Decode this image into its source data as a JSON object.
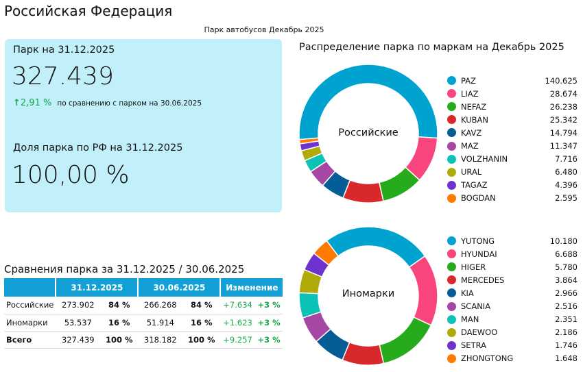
{
  "title": "Российская Федерация",
  "subtitle": "Парк автобусов Декабрь 2025",
  "kpi": {
    "park_label": "Парк на 31.12.2025",
    "park_value": "327.439",
    "change_arrow": "arrow-up-icon",
    "change_pct": "2,91 %",
    "change_text": "по сравнению с парком на 30.06.2025",
    "share_label": "Доля парка по РФ на 31.12.2025",
    "share_value": "100,00 %"
  },
  "comparison": {
    "title": "Сравнения парка за 31.12.2025 / 30.06.2025",
    "headers": [
      "",
      "31.12.2025",
      "30.06.2025",
      "Изменение"
    ],
    "rows": [
      {
        "name": "Российские",
        "v1": "273.902",
        "p1": "84 %",
        "v2": "266.268",
        "p2": "84 %",
        "d": "+7.634",
        "dp": "+3 %"
      },
      {
        "name": "Иномарки",
        "v1": "53.537",
        "p1": "16 %",
        "v2": "51.914",
        "p2": "16 %",
        "d": "+1.623",
        "dp": "+3 %"
      },
      {
        "name": "Всего",
        "v1": "327.439",
        "p1": "100 %",
        "v2": "318.182",
        "p2": "100 %",
        "d": "+9.257",
        "dp": "+3 %"
      }
    ]
  },
  "chart_data": [
    {
      "type": "pie",
      "title": "Распределение парка по маркам на Декабрь 2025",
      "center_label": "Российские",
      "legend_position": "right",
      "categories": [
        "PAZ",
        "LIAZ",
        "NEFAZ",
        "KUBAN",
        "KAVZ",
        "MAZ",
        "VOLZHANIN",
        "URAL",
        "TAGAZ",
        "BOGDAN"
      ],
      "values": [
        140625,
        28674,
        26238,
        25342,
        14794,
        11347,
        7716,
        6480,
        4396,
        2595
      ],
      "labels": [
        "140.625",
        "28.674",
        "26.238",
        "25.342",
        "14.794",
        "11.347",
        "7.716",
        "6.480",
        "4.396",
        "2.595"
      ],
      "colors": [
        "#00a3d0",
        "#f9457d",
        "#26ab1c",
        "#d9282b",
        "#055d95",
        "#a547a3",
        "#0cc2b7",
        "#afab08",
        "#6e32cf",
        "#ff7a00"
      ]
    },
    {
      "type": "pie",
      "center_label": "Иномарки",
      "legend_position": "right",
      "categories": [
        "YUTONG",
        "HYUNDAI",
        "HIGER",
        "MERCEDES",
        "KIA",
        "SCANIA",
        "MAN",
        "DAEWOO",
        "SETRA",
        "ZHONGTONG"
      ],
      "values": [
        10180,
        6688,
        5780,
        3864,
        2966,
        2516,
        2351,
        2186,
        1746,
        1648
      ],
      "labels": [
        "10.180",
        "6.688",
        "5.780",
        "3.864",
        "2.966",
        "2.516",
        "2.351",
        "2.186",
        "1.746",
        "1.648"
      ],
      "colors": [
        "#00a3d0",
        "#f9457d",
        "#26ab1c",
        "#d9282b",
        "#055d95",
        "#a547a3",
        "#0cc2b7",
        "#afab08",
        "#6e32cf",
        "#ff7a00"
      ]
    }
  ]
}
